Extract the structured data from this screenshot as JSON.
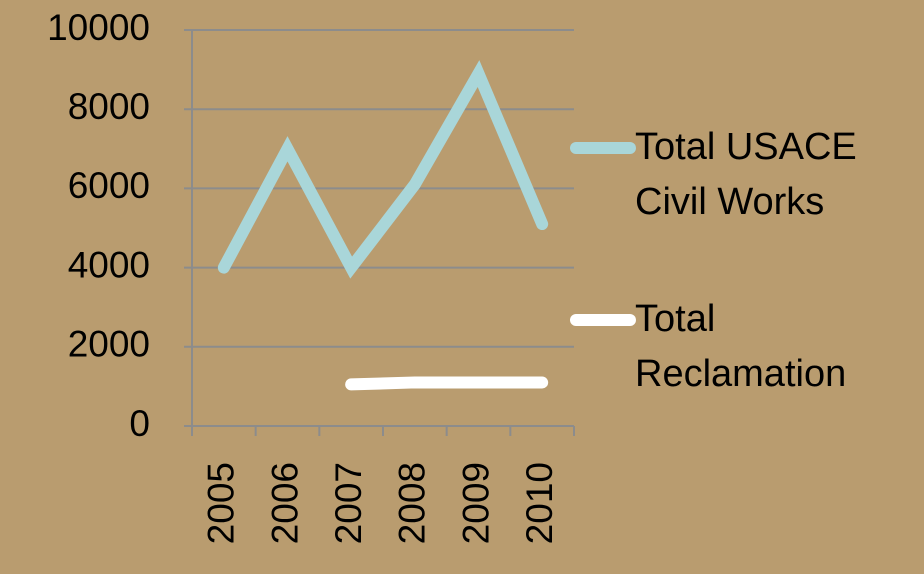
{
  "chart_data": {
    "type": "line",
    "categories": [
      "2005",
      "2006",
      "2007",
      "2008",
      "2009",
      "2010"
    ],
    "series": [
      {
        "name": "Total USACE Civil Works",
        "color": "#a9d6d9",
        "values": [
          4000,
          7000,
          4000,
          6100,
          8900,
          5100
        ]
      },
      {
        "name": "Total Reclamation",
        "color": "#ffffff",
        "values": [
          null,
          null,
          1050,
          1100,
          1100,
          1100
        ]
      }
    ],
    "ylim": [
      0,
      10000
    ],
    "yticks": [
      0,
      2000,
      4000,
      6000,
      8000,
      10000
    ],
    "grid": true,
    "legend": "right"
  }
}
